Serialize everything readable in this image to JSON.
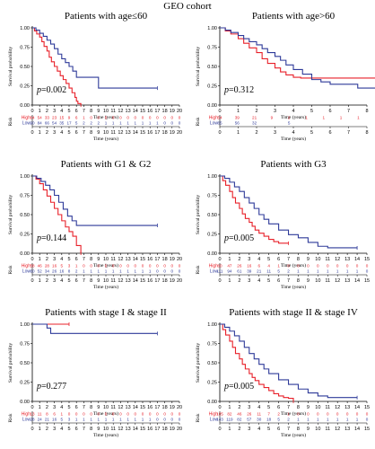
{
  "figure_title": "GEO cohort",
  "colors": {
    "high": "#e8212a",
    "low": "#2e3a99"
  },
  "risk_table_title": "Risk",
  "chart_data": [
    {
      "type": "line",
      "title": "Patients with age≤60",
      "xlabel": "Time (years)",
      "ylabel": "Survival probability",
      "xlim": [
        0,
        20
      ],
      "ylim": [
        0,
        1.0
      ],
      "xticks": [
        0,
        1,
        2,
        3,
        4,
        5,
        6,
        7,
        8,
        9,
        10,
        11,
        12,
        13,
        14,
        15,
        16,
        17,
        18,
        19,
        20
      ],
      "yticks": [
        0,
        0.25,
        0.5,
        0.75,
        1.0
      ],
      "pvalue_label": "p=0.002",
      "series": [
        {
          "name": "High",
          "x": [
            0,
            0.3,
            0.6,
            1,
            1.3,
            1.6,
            2,
            2.3,
            2.6,
            3,
            3.4,
            3.8,
            4.2,
            4.6,
            5,
            5.4,
            5.8,
            6,
            6.2,
            6.6
          ],
          "y": [
            1,
            0.96,
            0.92,
            0.88,
            0.82,
            0.76,
            0.7,
            0.62,
            0.56,
            0.5,
            0.44,
            0.38,
            0.33,
            0.28,
            0.22,
            0.16,
            0.1,
            0.05,
            0.02,
            0
          ]
        },
        {
          "name": "Low",
          "x": [
            0,
            0.5,
            1,
            1.5,
            2,
            2.5,
            3,
            3.5,
            4,
            4.5,
            5,
            5.5,
            6,
            9,
            17
          ],
          "y": [
            1,
            0.97,
            0.93,
            0.89,
            0.84,
            0.79,
            0.73,
            0.66,
            0.6,
            0.55,
            0.5,
            0.44,
            0.36,
            0.22,
            0.22
          ]
        }
      ],
      "risk_rows": [
        {
          "name": "High",
          "values": [
            "64",
            "54",
            "33",
            "23",
            "15",
            "9",
            "6",
            "1",
            "0",
            "0",
            "0",
            "0",
            "0",
            "0",
            "0",
            "0",
            "0",
            "0",
            "0",
            "0",
            "0"
          ]
        },
        {
          "name": "Low",
          "values": [
            "90",
            "84",
            "66",
            "54",
            "35",
            "17",
            "5",
            "2",
            "2",
            "2",
            "1",
            "1",
            "1",
            "1",
            "1",
            "1",
            "1",
            "1",
            "0",
            "0",
            "0"
          ]
        }
      ]
    },
    {
      "type": "line",
      "title": "Patients with age>60",
      "xlabel": "Time (years)",
      "ylabel": "Survival probability",
      "xlim": [
        0,
        8
      ],
      "ylim": [
        0,
        1.0
      ],
      "xticks": [
        0,
        1,
        2,
        3,
        4,
        5,
        6,
        7,
        8
      ],
      "yticks": [
        0,
        0.25,
        0.5,
        0.75,
        1.0
      ],
      "pvalue_label": "p=0.312",
      "series": [
        {
          "name": "High",
          "x": [
            0,
            0.3,
            0.6,
            1,
            1.3,
            1.6,
            2,
            2.3,
            2.6,
            3,
            3.3,
            3.6,
            4,
            4.4,
            4.8,
            5,
            8.5
          ],
          "y": [
            1,
            0.96,
            0.92,
            0.86,
            0.8,
            0.74,
            0.68,
            0.6,
            0.54,
            0.48,
            0.43,
            0.39,
            0.36,
            0.35,
            0.35,
            0.35,
            0.35
          ]
        },
        {
          "name": "Low",
          "x": [
            0,
            0.3,
            0.6,
            1,
            1.3,
            1.6,
            2,
            2.3,
            2.6,
            3,
            3.3,
            3.6,
            4,
            4.5,
            5,
            5.5,
            6,
            7.5,
            8.5
          ],
          "y": [
            1,
            0.97,
            0.94,
            0.9,
            0.86,
            0.82,
            0.78,
            0.73,
            0.68,
            0.63,
            0.58,
            0.52,
            0.46,
            0.4,
            0.33,
            0.3,
            0.27,
            0.22,
            0.2
          ]
        }
      ],
      "risk_rows": [
        {
          "name": "High",
          "values": [
            "54",
            "",
            "39",
            "",
            "21",
            "",
            "9",
            "",
            "2",
            "",
            "1",
            "",
            "1",
            "",
            "1",
            "",
            "1",
            ""
          ]
        },
        {
          "name": "Low",
          "values": [
            "65",
            "",
            "56",
            "",
            "32",
            "",
            "",
            "",
            "5",
            "",
            "",
            "",
            "",
            "",
            "",
            "",
            "",
            ""
          ]
        }
      ]
    },
    {
      "type": "line",
      "title": "Patients with G1 & G2",
      "xlabel": "Time (years)",
      "ylabel": "Survival probability",
      "xlim": [
        0,
        20
      ],
      "ylim": [
        0,
        1.0
      ],
      "xticks": [
        0,
        1,
        2,
        3,
        4,
        5,
        6,
        7,
        8,
        9,
        10,
        11,
        12,
        13,
        14,
        15,
        16,
        17,
        18,
        19,
        20
      ],
      "yticks": [
        0,
        0.25,
        0.5,
        0.75,
        1.0
      ],
      "pvalue_label": "p=0.144",
      "series": [
        {
          "name": "High",
          "x": [
            0,
            0.5,
            1,
            1.5,
            2,
            2.5,
            3,
            3.5,
            4,
            4.5,
            5,
            5.5,
            6,
            6.6
          ],
          "y": [
            1,
            0.96,
            0.9,
            0.82,
            0.74,
            0.66,
            0.58,
            0.5,
            0.42,
            0.34,
            0.28,
            0.22,
            0.1,
            0
          ]
        },
        {
          "name": "Low",
          "x": [
            0,
            0.6,
            1.2,
            1.8,
            2.4,
            3,
            3.6,
            4.2,
            4.8,
            5.4,
            6,
            17
          ],
          "y": [
            1,
            0.97,
            0.93,
            0.88,
            0.82,
            0.75,
            0.66,
            0.57,
            0.48,
            0.42,
            0.36,
            0.36
          ]
        }
      ],
      "risk_rows": [
        {
          "name": "High",
          "values": [
            "58",
            "46",
            "28",
            "16",
            "5",
            "3",
            "1",
            "0",
            "0",
            "0",
            "0",
            "0",
            "0",
            "0",
            "0",
            "0",
            "0",
            "0",
            "0",
            "0",
            "0"
          ]
        },
        {
          "name": "Low",
          "values": [
            "60",
            "52",
            "34",
            "26",
            "16",
            "8",
            "2",
            "1",
            "1",
            "1",
            "1",
            "1",
            "1",
            "1",
            "1",
            "1",
            "1",
            "0",
            "0",
            "0",
            "0"
          ]
        }
      ]
    },
    {
      "type": "line",
      "title": "Patients with G3",
      "xlabel": "Time (years)",
      "ylabel": "Survival probability",
      "xlim": [
        0,
        15
      ],
      "ylim": [
        0,
        1.0
      ],
      "xticks": [
        0,
        1,
        2,
        3,
        4,
        5,
        6,
        7,
        8,
        9,
        10,
        11,
        12,
        13,
        14,
        15
      ],
      "yticks": [
        0,
        0.25,
        0.5,
        0.75,
        1.0
      ],
      "pvalue_label": "p=0.005",
      "series": [
        {
          "name": "High",
          "x": [
            0,
            0.3,
            0.6,
            1,
            1.3,
            1.6,
            2,
            2.3,
            2.6,
            3,
            3.3,
            3.6,
            4,
            4.5,
            5,
            5.5,
            6,
            6.5,
            7
          ],
          "y": [
            1,
            0.94,
            0.88,
            0.8,
            0.72,
            0.65,
            0.58,
            0.51,
            0.45,
            0.4,
            0.35,
            0.3,
            0.26,
            0.22,
            0.18,
            0.15,
            0.13,
            0.13,
            0.13
          ]
        },
        {
          "name": "Low",
          "x": [
            0,
            0.5,
            1,
            1.5,
            2,
            2.5,
            3,
            3.5,
            4,
            4.5,
            5,
            6,
            7,
            8,
            9,
            10,
            11,
            12,
            14
          ],
          "y": [
            1,
            0.97,
            0.92,
            0.86,
            0.8,
            0.72,
            0.65,
            0.58,
            0.5,
            0.44,
            0.38,
            0.3,
            0.24,
            0.2,
            0.14,
            0.09,
            0.07,
            0.07,
            0.07
          ]
        }
      ],
      "risk_rows": [
        {
          "name": "High",
          "values": [
            "60",
            "47",
            "26",
            "16",
            "6",
            "4",
            "1",
            "0",
            "0",
            "0",
            "0",
            "0",
            "0",
            "0",
            "0",
            "0"
          ]
        },
        {
          "name": "Low",
          "values": [
            "111",
            "94",
            "61",
            "39",
            "21",
            "11",
            "5",
            "2",
            "1",
            "1",
            "1",
            "1",
            "1",
            "1",
            "1",
            "0"
          ]
        }
      ]
    },
    {
      "type": "line",
      "title": "Patients with stage I & stage II",
      "xlabel": "Time (years)",
      "ylabel": "Survival probability",
      "xlim": [
        0,
        20
      ],
      "ylim": [
        0,
        1.0
      ],
      "xticks": [
        0,
        1,
        2,
        3,
        4,
        5,
        6,
        7,
        8,
        9,
        10,
        11,
        12,
        13,
        14,
        15,
        16,
        17,
        18,
        19,
        20
      ],
      "yticks": [
        0,
        0.25,
        0.5,
        0.75,
        1.0
      ],
      "pvalue_label": "p=0.277",
      "series": [
        {
          "name": "High",
          "x": [
            0,
            1,
            2,
            3,
            4,
            5
          ],
          "y": [
            1,
            1,
            1,
            1,
            1,
            1
          ]
        },
        {
          "name": "Low",
          "x": [
            0,
            1,
            2,
            2.5,
            3,
            4,
            17
          ],
          "y": [
            1,
            1,
            0.95,
            0.88,
            0.88,
            0.88,
            0.88
          ]
        }
      ],
      "risk_rows": [
        {
          "name": "High",
          "values": [
            "13",
            "11",
            "8",
            "6",
            "1",
            "0",
            "0",
            "0",
            "0",
            "0",
            "0",
            "0",
            "0",
            "0",
            "0",
            "0",
            "0",
            "0",
            "0",
            "0",
            "0"
          ]
        },
        {
          "name": "Low",
          "values": [
            "28",
            "24",
            "21",
            "16",
            "5",
            "3",
            "1",
            "1",
            "1",
            "1",
            "1",
            "1",
            "1",
            "1",
            "1",
            "1",
            "1",
            "0",
            "0",
            "0",
            "0"
          ]
        }
      ]
    },
    {
      "type": "line",
      "title": "Patients with stage II & stage IV",
      "xlabel": "Time (years)",
      "ylabel": "Survival probability",
      "xlim": [
        0,
        15
      ],
      "ylim": [
        0,
        1.0
      ],
      "xticks": [
        0,
        1,
        2,
        3,
        4,
        5,
        6,
        7,
        8,
        9,
        10,
        11,
        12,
        13,
        14,
        15
      ],
      "yticks": [
        0,
        0.25,
        0.5,
        0.75,
        1.0
      ],
      "pvalue_label": "p=0.005",
      "series": [
        {
          "name": "High",
          "x": [
            0,
            0.3,
            0.6,
            1,
            1.3,
            1.6,
            2,
            2.3,
            2.6,
            3,
            3.3,
            3.6,
            4,
            4.5,
            5,
            5.5,
            6,
            6.5,
            7,
            7.5
          ],
          "y": [
            1,
            0.93,
            0.86,
            0.78,
            0.7,
            0.62,
            0.55,
            0.48,
            0.42,
            0.36,
            0.31,
            0.27,
            0.22,
            0.18,
            0.14,
            0.1,
            0.07,
            0.05,
            0.04,
            0
          ]
        },
        {
          "name": "Low",
          "x": [
            0,
            0.5,
            1,
            1.5,
            2,
            2.5,
            3,
            3.5,
            4,
            4.5,
            5,
            6,
            7,
            8,
            9,
            10,
            11,
            12,
            14
          ],
          "y": [
            1,
            0.96,
            0.91,
            0.85,
            0.78,
            0.7,
            0.62,
            0.55,
            0.48,
            0.42,
            0.36,
            0.28,
            0.22,
            0.16,
            0.11,
            0.07,
            0.05,
            0.05,
            0.05
          ]
        }
      ],
      "risk_rows": [
        {
          "name": "High",
          "values": [
            "105",
            "82",
            "46",
            "26",
            "11",
            "7",
            "2",
            "1",
            "0",
            "0",
            "0",
            "0",
            "0",
            "0",
            "0",
            "0"
          ]
        },
        {
          "name": "Low",
          "values": [
            "143",
            "119",
            "82",
            "57",
            "30",
            "18",
            "5",
            "2",
            "1",
            "1",
            "1",
            "1",
            "1",
            "1",
            "1",
            "0"
          ]
        }
      ]
    }
  ]
}
